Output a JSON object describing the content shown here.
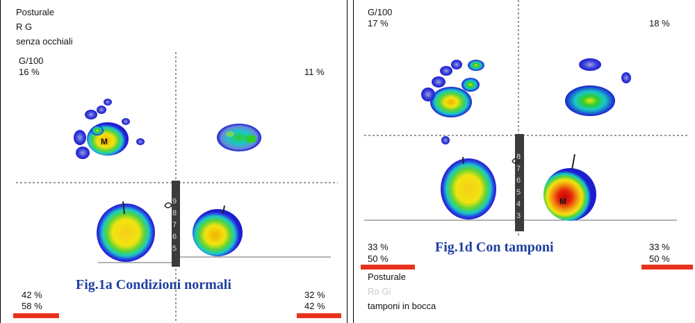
{
  "panel_a": {
    "title": "Posturale",
    "patient": "R G",
    "subtitle": "senza occhiali",
    "scale": "G/100",
    "pct_top_left": "16 %",
    "pct_top_right": "11 %",
    "pct_bottom_left_1": "42 %",
    "pct_bottom_left_2": "58 %",
    "pct_bottom_right_1": "32 %",
    "pct_bottom_right_2": "42 %",
    "caption": "Fig.1a Condizioni normali",
    "marker": "M",
    "ruler_digits": "98765"
  },
  "panel_d": {
    "scale": "G/100",
    "pct_top_left": "17 %",
    "pct_top_right": "18 %",
    "pct_bottom_left_1": "33 %",
    "pct_bottom_left_2": "50 %",
    "pct_bottom_right_1": "33 %",
    "pct_bottom_right_2": "50 %",
    "caption": "Fig.1d Con tamponi",
    "footer_title": "Posturale",
    "footer_patient": "Ro Gi",
    "footer_subtitle": "tamponi in bocca",
    "marker": "M",
    "ruler_digits": "876543"
  },
  "colors": {
    "caption": "#1f3fa0",
    "red_bar": "#e8321e",
    "blob_outer": "#1d1dd0",
    "blob_mid": "#18c8c8",
    "blob_green": "#2ecc2e",
    "blob_yellow": "#f2e410",
    "blob_red": "#e4200c"
  }
}
